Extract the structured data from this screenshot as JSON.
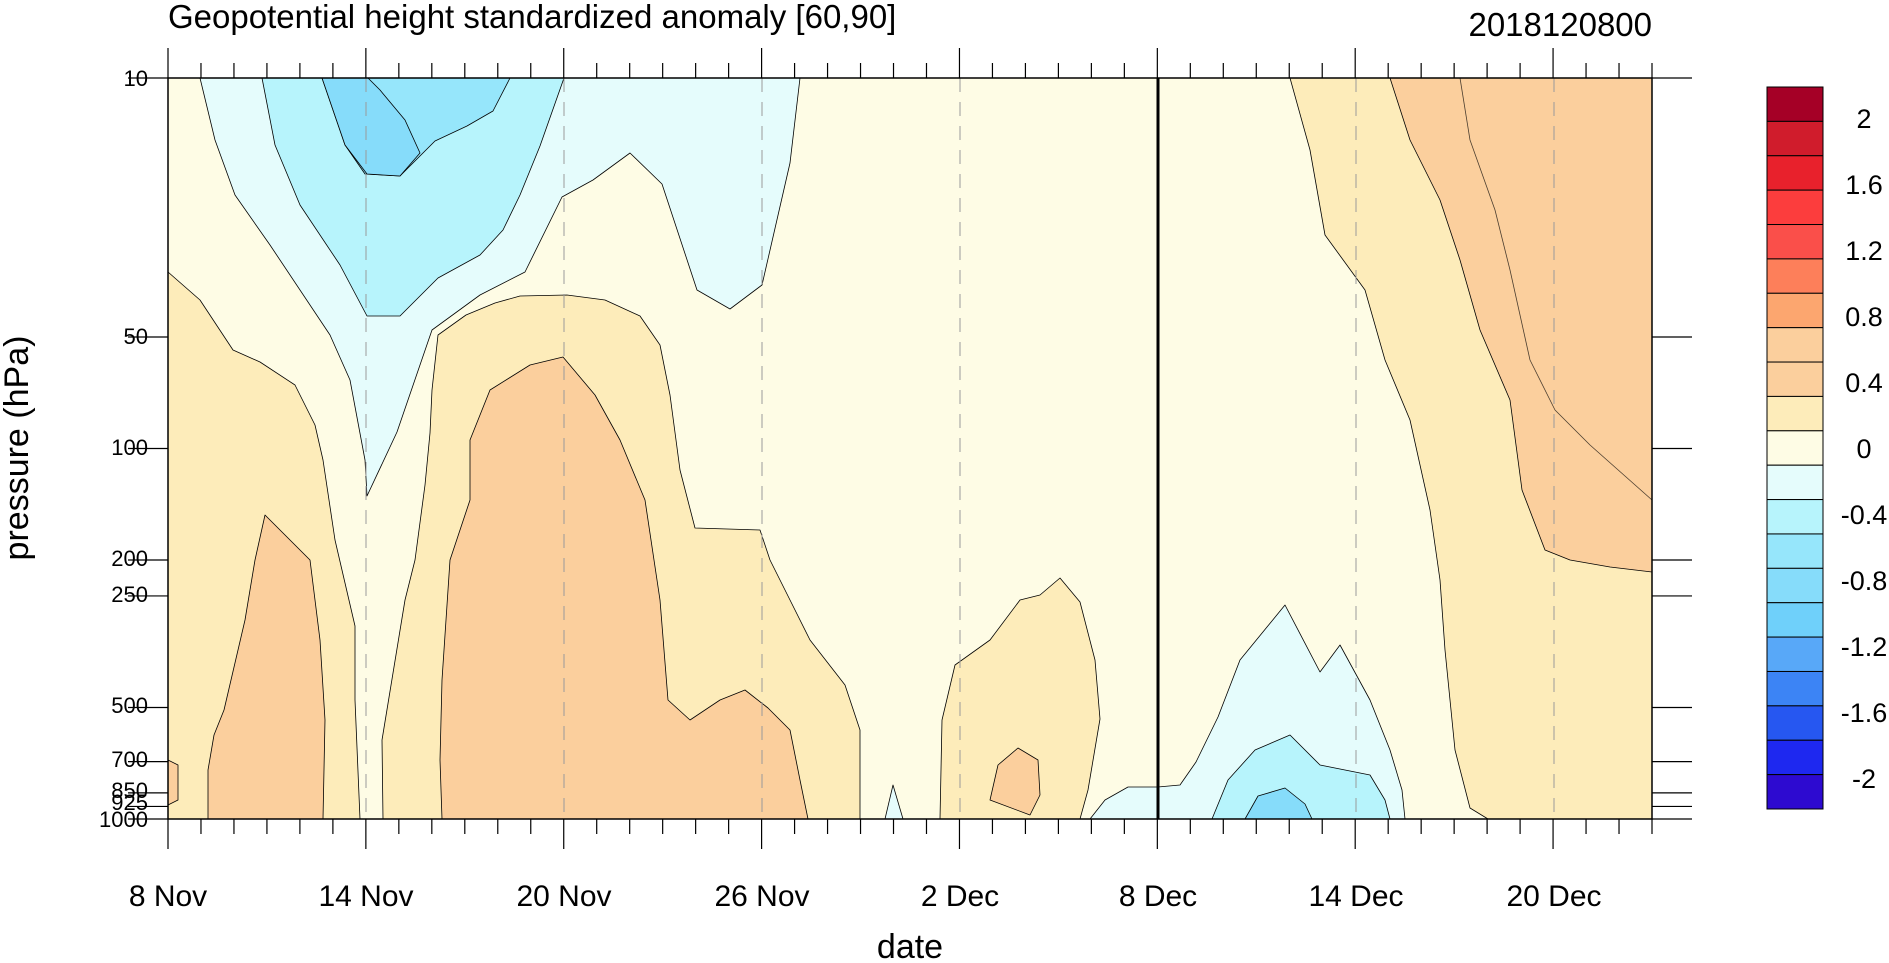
{
  "chart_data": {
    "type": "heatmap",
    "title": "Geopotential height standardized anomaly [60,90]",
    "init_label": "2018120800",
    "xlabel": "date",
    "ylabel": "pressure (hPa)",
    "x_tick_labels": [
      "8 Nov",
      "14 Nov",
      "20 Nov",
      "26 Nov",
      "2 Dec",
      "8 Dec",
      "14 Dec",
      "20 Dec"
    ],
    "x_range_days": [
      0,
      45
    ],
    "y_scale": "log",
    "y_range_hpa": [
      10,
      1000
    ],
    "y_tick_labels": [
      "10",
      "50",
      "100",
      "200",
      "250",
      "500",
      "700",
      "850",
      "925",
      "1000"
    ],
    "contour_levels": [
      -2,
      -1.8,
      -1.6,
      -1.4,
      -1.2,
      -1.0,
      -0.8,
      -0.6,
      -0.4,
      -0.2,
      0,
      0.2,
      0.4,
      0.6,
      0.8,
      1.0,
      1.2,
      1.4,
      1.6,
      1.8,
      2
    ],
    "colorbar_labels": [
      "2",
      "1.6",
      "1.2",
      "0.8",
      "0.4",
      "0",
      "-0.4",
      "-0.8",
      "-1.2",
      "-1.6",
      "-2"
    ],
    "colorbar_colors": [
      "#a50026",
      "#d01c2c",
      "#e8212c",
      "#fc3d3d",
      "#fa4f4a",
      "#fd7f5a",
      "#fca66f",
      "#fbcf9d",
      "#fbcf9d",
      "#fdecba",
      "#fefce5",
      "#e5fcfc",
      "#b7f4fc",
      "#96e6fb",
      "#86dcfa",
      "#6fd0fa",
      "#58a8f8",
      "#3c84f5",
      "#2657f1",
      "#1e28f0",
      "#2d0ad0"
    ],
    "regions_note": "negative anomalies near 10-50 hPa 8-26 Nov and near surface 8-14 Dec; positive anomalies 0.4-0.8 in troposphere mid-Nov and stratosphere after 16 Dec",
    "analysis_boundary_label": "8 Dec"
  }
}
